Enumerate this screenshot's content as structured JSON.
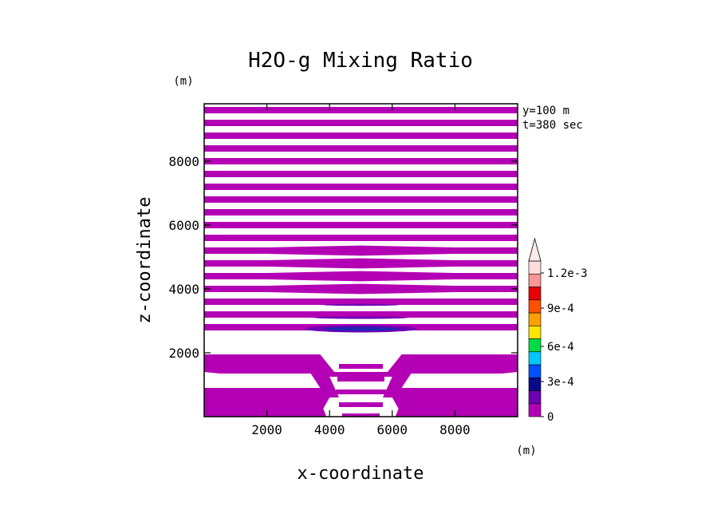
{
  "chart_data": {
    "type": "heatmap",
    "title": "H2O-g Mixing Ratio",
    "xlabel": "x-coordinate",
    "ylabel": "z-coordinate",
    "x_unit": "(m)",
    "y_unit": "(m)",
    "xlim": [
      0,
      10000
    ],
    "ylim": [
      0,
      9800
    ],
    "xticks": [
      2000,
      4000,
      6000,
      8000
    ],
    "yticks": [
      2000,
      4000,
      6000,
      8000
    ],
    "annotations": [
      "y=100 m",
      "t=380 sec"
    ],
    "colorbar": {
      "levels": [
        0,
        0.00015,
        0.0003,
        0.00045,
        0.0006,
        0.00075,
        0.0009,
        0.00105,
        0.0012,
        0.00135
      ],
      "tick_values": [
        0,
        0.0003,
        0.0006,
        0.0009,
        0.0012
      ],
      "tick_labels": [
        "0",
        "3e-4",
        "6e-4",
        "9e-4",
        "1.2e-3"
      ],
      "colors": [
        "#b400b4",
        "#6e00b4",
        "#0a0a8c",
        "#0050ff",
        "#00c8ff",
        "#00dc46",
        "#ffe600",
        "#ffa000",
        "#ff5000",
        "#e60000",
        "#ff9696",
        "#ffdcdc"
      ],
      "extend": "max"
    },
    "bands": {
      "band_height_m": 200,
      "band_spacing_m": 400,
      "z_top": 9700,
      "z_bottom_upper": 2750,
      "level_index": 0,
      "color": "#b400b4"
    },
    "features": [
      {
        "name": "weak-moisture-core",
        "center_x": 5000,
        "center_z": 2750,
        "half_width": 1800,
        "level_index": 1,
        "color": "#6e00b4"
      },
      {
        "name": "strong-moisture-core",
        "center_x": 5000,
        "center_z": 2750,
        "half_width": 1200,
        "level_index": 2,
        "color": "#1e28b4"
      }
    ],
    "lower_region": {
      "description": "magenta layers between 100-900 m and 1400-1950 m with a notch near x=4000-6000",
      "color": "#b400b4"
    }
  }
}
